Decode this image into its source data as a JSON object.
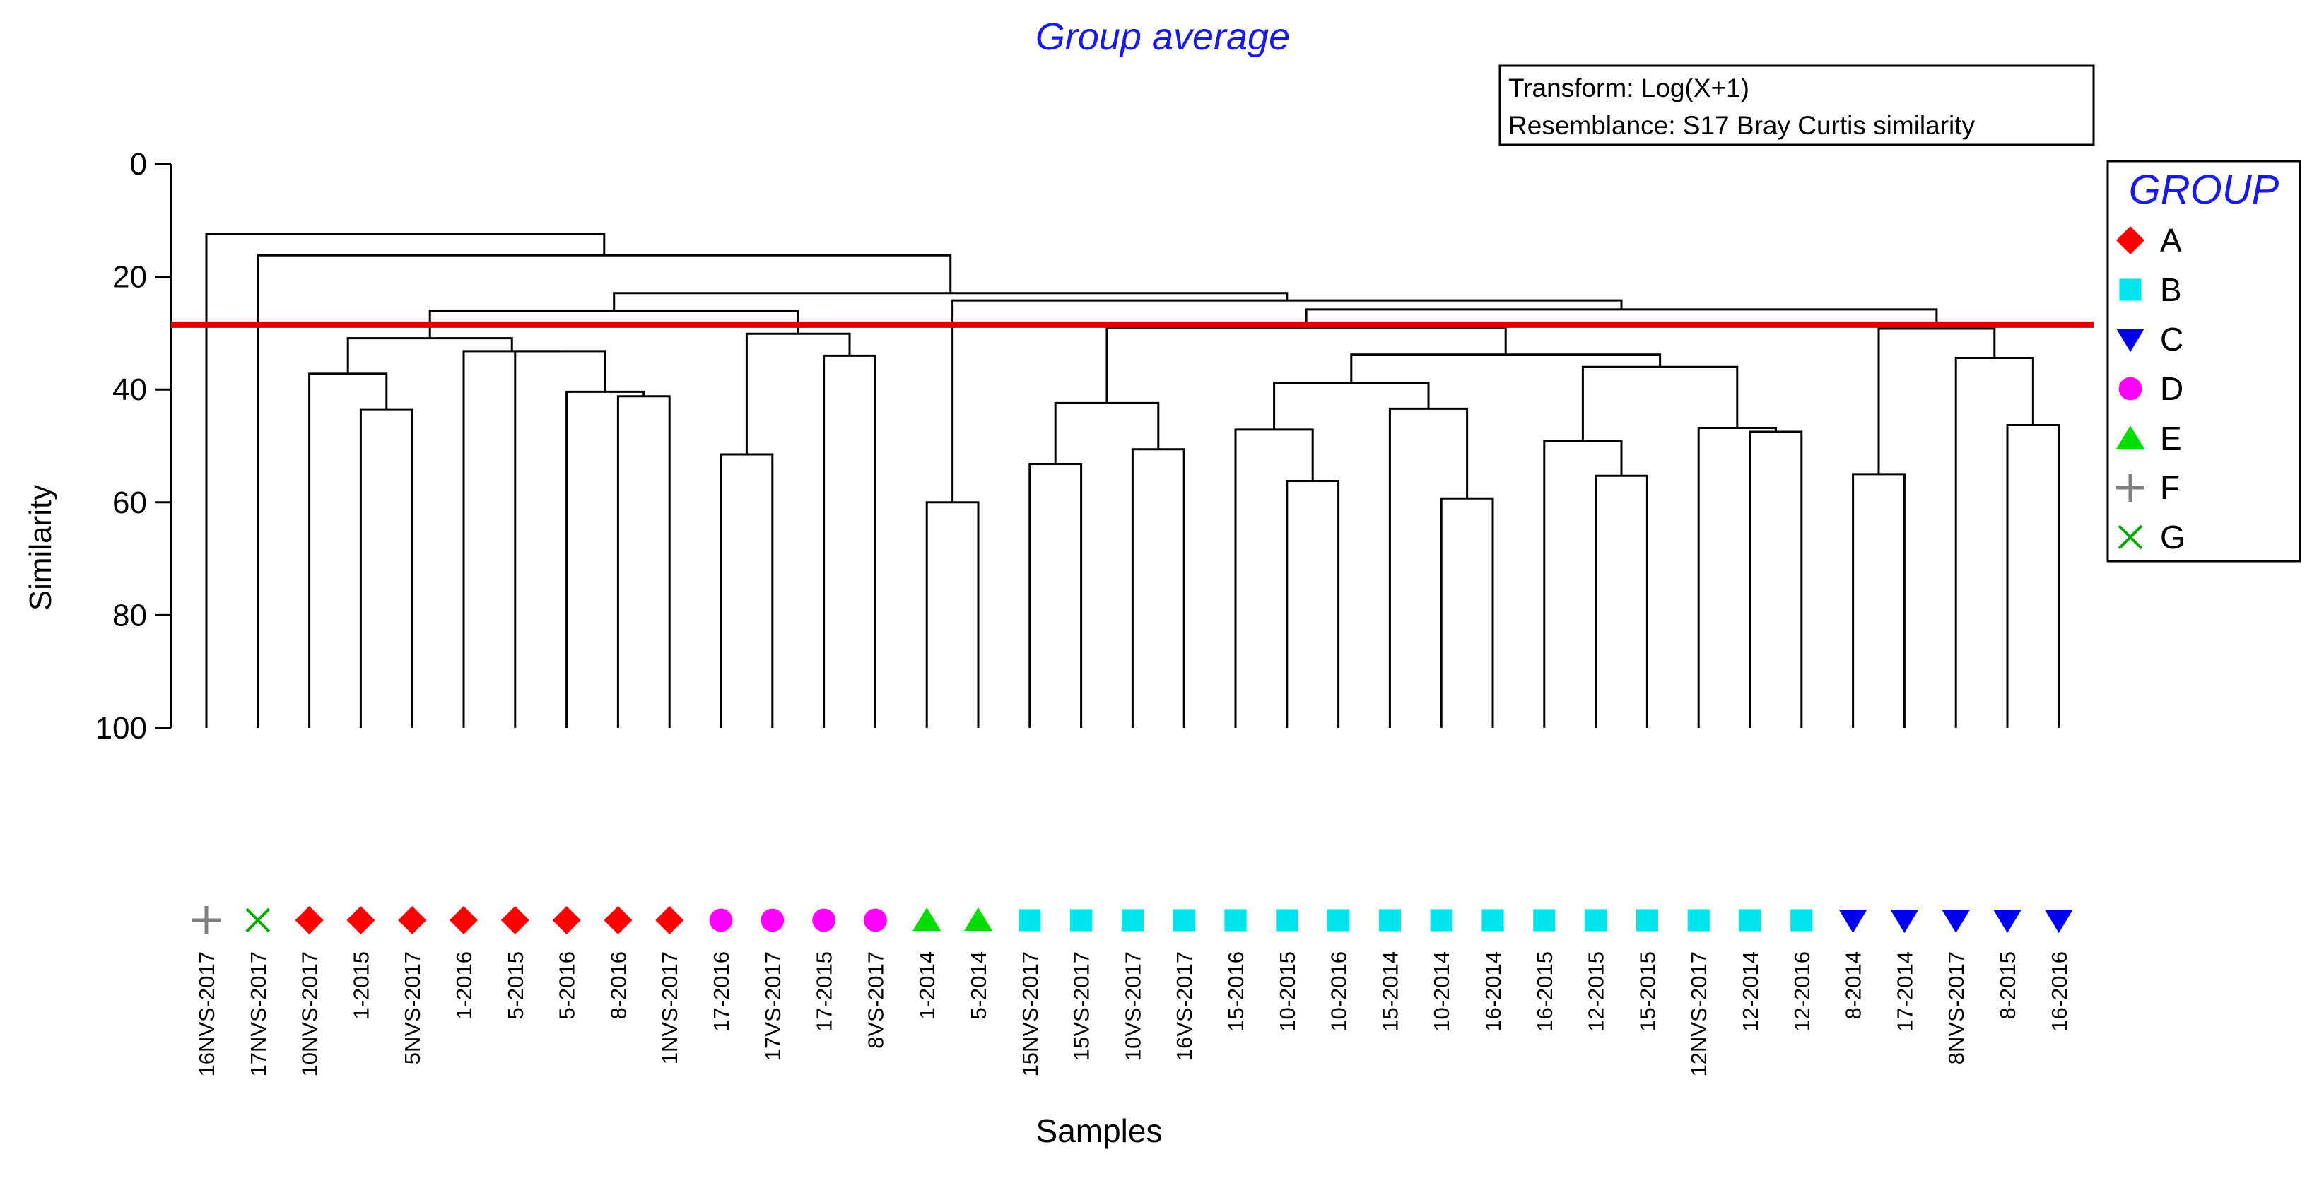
{
  "chart_data": {
    "type": "dendrogram",
    "title": "Group average",
    "info_box": [
      "Transform: Log(X+1)",
      "Resemblance: S17 Bray Curtis similarity"
    ],
    "xlabel": "Samples",
    "ylabel": "Similarity",
    "ylim": [
      0,
      100
    ],
    "yticks": [
      0,
      20,
      40,
      60,
      80,
      100
    ],
    "cut_line_similarity": 28.5,
    "legend": {
      "title": "GROUP",
      "entries": [
        {
          "name": "A",
          "marker": "diamond",
          "color": "#ff0000"
        },
        {
          "name": "B",
          "marker": "square",
          "color": "#00e5ee"
        },
        {
          "name": "C",
          "marker": "triangle-down",
          "color": "#0000ee"
        },
        {
          "name": "D",
          "marker": "circle",
          "color": "#ff00ff"
        },
        {
          "name": "E",
          "marker": "triangle-up",
          "color": "#00dd00"
        },
        {
          "name": "F",
          "marker": "plus",
          "color": "#808080"
        },
        {
          "name": "G",
          "marker": "x",
          "color": "#00aa00"
        }
      ]
    },
    "samples": [
      {
        "label": "16NVS-2017",
        "group": "F"
      },
      {
        "label": "17NVS-2017",
        "group": "G"
      },
      {
        "label": "10NVS-2017",
        "group": "A"
      },
      {
        "label": "1-2015",
        "group": "A"
      },
      {
        "label": "5NVS-2017",
        "group": "A"
      },
      {
        "label": "1-2016",
        "group": "A"
      },
      {
        "label": "5-2015",
        "group": "A"
      },
      {
        "label": "5-2016",
        "group": "A"
      },
      {
        "label": "8-2016",
        "group": "A"
      },
      {
        "label": "1NVS-2017",
        "group": "A"
      },
      {
        "label": "17-2016",
        "group": "D"
      },
      {
        "label": "17VS-2017",
        "group": "D"
      },
      {
        "label": "17-2015",
        "group": "D"
      },
      {
        "label": "8VS-2017",
        "group": "D"
      },
      {
        "label": "1-2014",
        "group": "E"
      },
      {
        "label": "5-2014",
        "group": "E"
      },
      {
        "label": "15NVS-2017",
        "group": "B"
      },
      {
        "label": "15VS-2017",
        "group": "B"
      },
      {
        "label": "10VS-2017",
        "group": "B"
      },
      {
        "label": "16VS-2017",
        "group": "B"
      },
      {
        "label": "15-2016",
        "group": "B"
      },
      {
        "label": "10-2015",
        "group": "B"
      },
      {
        "label": "10-2016",
        "group": "B"
      },
      {
        "label": "15-2014",
        "group": "B"
      },
      {
        "label": "10-2014",
        "group": "B"
      },
      {
        "label": "16-2014",
        "group": "B"
      },
      {
        "label": "16-2015",
        "group": "B"
      },
      {
        "label": "12-2015",
        "group": "B"
      },
      {
        "label": "15-2015",
        "group": "B"
      },
      {
        "label": "12NVS-2017",
        "group": "B"
      },
      {
        "label": "12-2014",
        "group": "B"
      },
      {
        "label": "12-2016",
        "group": "B"
      },
      {
        "label": "8-2014",
        "group": "C"
      },
      {
        "label": "17-2014",
        "group": "C"
      },
      {
        "label": "8NVS-2017",
        "group": "C"
      },
      {
        "label": "8-2015",
        "group": "C"
      },
      {
        "label": "16-2016",
        "group": "C"
      }
    ],
    "merges": [
      {
        "id": "m1",
        "a": 3,
        "b": 4,
        "sim": 43.5
      },
      {
        "id": "m2",
        "a": 2,
        "b": "m1",
        "sim": 37.2
      },
      {
        "id": "m3",
        "a": 8,
        "b": 9,
        "sim": 41.2
      },
      {
        "id": "m4",
        "a": 7,
        "b": "m3",
        "sim": 40.4
      },
      {
        "id": "m5",
        "a": 6,
        "b": "m4",
        "sim": 33.2
      },
      {
        "id": "m6",
        "a": 5,
        "b": "m5",
        "sim": 33.2
      },
      {
        "id": "m7",
        "a": "m2",
        "b": "m6",
        "sim": 30.9
      },
      {
        "id": "m8",
        "a": 10,
        "b": 11,
        "sim": 51.5
      },
      {
        "id": "m9",
        "a": 12,
        "b": 13,
        "sim": 34.0
      },
      {
        "id": "m10",
        "a": "m8",
        "b": "m9",
        "sim": 30.1
      },
      {
        "id": "m11",
        "a": "m7",
        "b": "m10",
        "sim": 26.0
      },
      {
        "id": "m12",
        "a": 14,
        "b": 15,
        "sim": 60.0
      },
      {
        "id": "m13",
        "a": 16,
        "b": 17,
        "sim": 53.2
      },
      {
        "id": "m14",
        "a": 18,
        "b": 19,
        "sim": 50.6
      },
      {
        "id": "m15",
        "a": "m13",
        "b": "m14",
        "sim": 42.4
      },
      {
        "id": "m16",
        "a": 21,
        "b": 22,
        "sim": 56.2
      },
      {
        "id": "m17",
        "a": 20,
        "b": "m16",
        "sim": 47.1
      },
      {
        "id": "m18",
        "a": 24,
        "b": 25,
        "sim": 59.3
      },
      {
        "id": "m19",
        "a": 23,
        "b": "m18",
        "sim": 43.4
      },
      {
        "id": "m20",
        "a": "m17",
        "b": "m19",
        "sim": 38.8
      },
      {
        "id": "m21",
        "a": 27,
        "b": 28,
        "sim": 55.3
      },
      {
        "id": "m22",
        "a": 26,
        "b": "m21",
        "sim": 49.1
      },
      {
        "id": "m23",
        "a": 30,
        "b": 31,
        "sim": 47.5
      },
      {
        "id": "m24",
        "a": 29,
        "b": "m23",
        "sim": 46.8
      },
      {
        "id": "m25",
        "a": "m22",
        "b": "m24",
        "sim": 36.0
      },
      {
        "id": "m26",
        "a": "m20",
        "b": "m25",
        "sim": 33.8
      },
      {
        "id": "m27",
        "a": "m15",
        "b": "m26",
        "sim": 29.0
      },
      {
        "id": "m28",
        "a": 32,
        "b": 33,
        "sim": 55.0
      },
      {
        "id": "m29",
        "a": 35,
        "b": 36,
        "sim": 46.3
      },
      {
        "id": "m30",
        "a": 34,
        "b": "m29",
        "sim": 34.4
      },
      {
        "id": "m31",
        "a": "m28",
        "b": "m30",
        "sim": 29.2
      },
      {
        "id": "m32",
        "a": "m27",
        "b": "m31",
        "sim": 25.8
      },
      {
        "id": "m33",
        "a": "m12",
        "b": "m32",
        "sim": 24.2
      },
      {
        "id": "m34",
        "a": "m11",
        "b": "m33",
        "sim": 22.9
      },
      {
        "id": "m35",
        "a": 1,
        "b": "m34",
        "sim": 16.2
      },
      {
        "id": "m36",
        "a": 0,
        "b": "m35",
        "sim": 12.4
      }
    ]
  }
}
